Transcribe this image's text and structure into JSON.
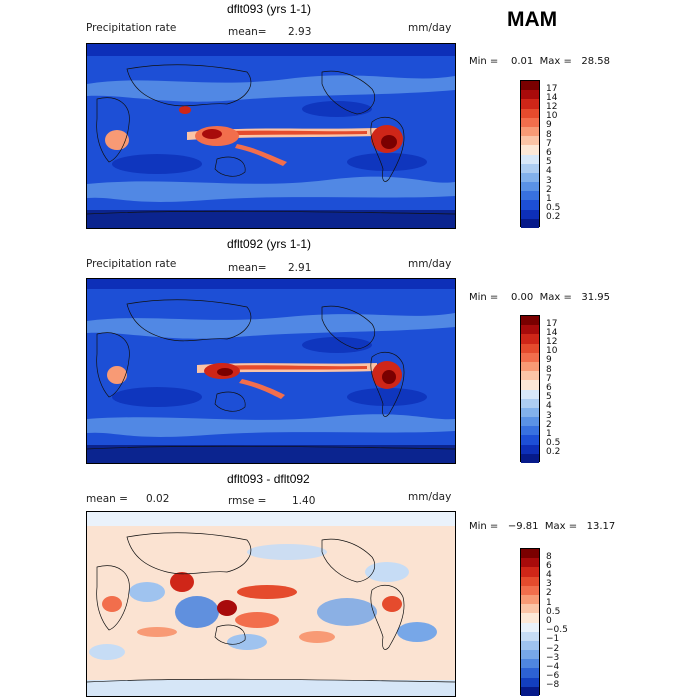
{
  "season": "MAM",
  "panels": [
    {
      "title": "dflt093 (yrs 1-1)",
      "left_label": "Precipitation rate",
      "mean_label": "mean=",
      "mean_value": "2.93",
      "units": "mm/day",
      "range_text": "Min =    0.01  Max =   28.58",
      "colorbar": {
        "labels": [
          "17",
          "14",
          "12",
          "10",
          "9",
          "8",
          "7",
          "6",
          "5",
          "4",
          "3",
          "2",
          "1",
          "0.5",
          "0.2"
        ],
        "colors": [
          "#7a0000",
          "#a80b0b",
          "#cf2618",
          "#e54b2d",
          "#f26e4c",
          "#f89a75",
          "#fbc4a6",
          "#fde8d7",
          "#d8e8f9",
          "#adcdf2",
          "#82b1ec",
          "#5a92e6",
          "#3871e0",
          "#1d4fd6",
          "#0d2fb8",
          "#061a8a"
        ]
      },
      "bg": "#1d4fd6"
    },
    {
      "title": "dflt092 (yrs 1-1)",
      "left_label": "Precipitation rate",
      "mean_label": "mean=",
      "mean_value": "2.91",
      "units": "mm/day",
      "range_text": "Min =    0.00  Max =   31.95",
      "colorbar": {
        "labels": [
          "17",
          "14",
          "12",
          "10",
          "9",
          "8",
          "7",
          "6",
          "5",
          "4",
          "3",
          "2",
          "1",
          "0.5",
          "0.2"
        ],
        "colors": [
          "#7a0000",
          "#a80b0b",
          "#cf2618",
          "#e54b2d",
          "#f26e4c",
          "#f89a75",
          "#fbc4a6",
          "#fde8d7",
          "#d8e8f9",
          "#adcdf2",
          "#82b1ec",
          "#5a92e6",
          "#3871e0",
          "#1d4fd6",
          "#0d2fb8",
          "#061a8a"
        ]
      },
      "bg": "#1d4fd6"
    },
    {
      "title": "dflt093 - dflt092",
      "left_label": "mean =",
      "left_value": "0.02",
      "mean_label": "rmse =",
      "mean_value": "1.40",
      "units": "mm/day",
      "range_text": "Min =   −9.81  Max =   13.17",
      "colorbar": {
        "labels": [
          "8",
          "6",
          "4",
          "3",
          "2",
          "1",
          "0.5",
          "0",
          "−0.5",
          "−1",
          "−2",
          "−3",
          "−4",
          "−6",
          "−8"
        ],
        "colors": [
          "#7a0000",
          "#a80b0b",
          "#cf2618",
          "#e54b2d",
          "#f26e4c",
          "#f89a75",
          "#fbc4a6",
          "#fde8d7",
          "#eaf2fb",
          "#c6dcf5",
          "#9fc3ef",
          "#77a7e8",
          "#4f86df",
          "#2d62d4",
          "#133fc0",
          "#061a8a"
        ]
      },
      "bg": "#fbe3d2"
    }
  ]
}
